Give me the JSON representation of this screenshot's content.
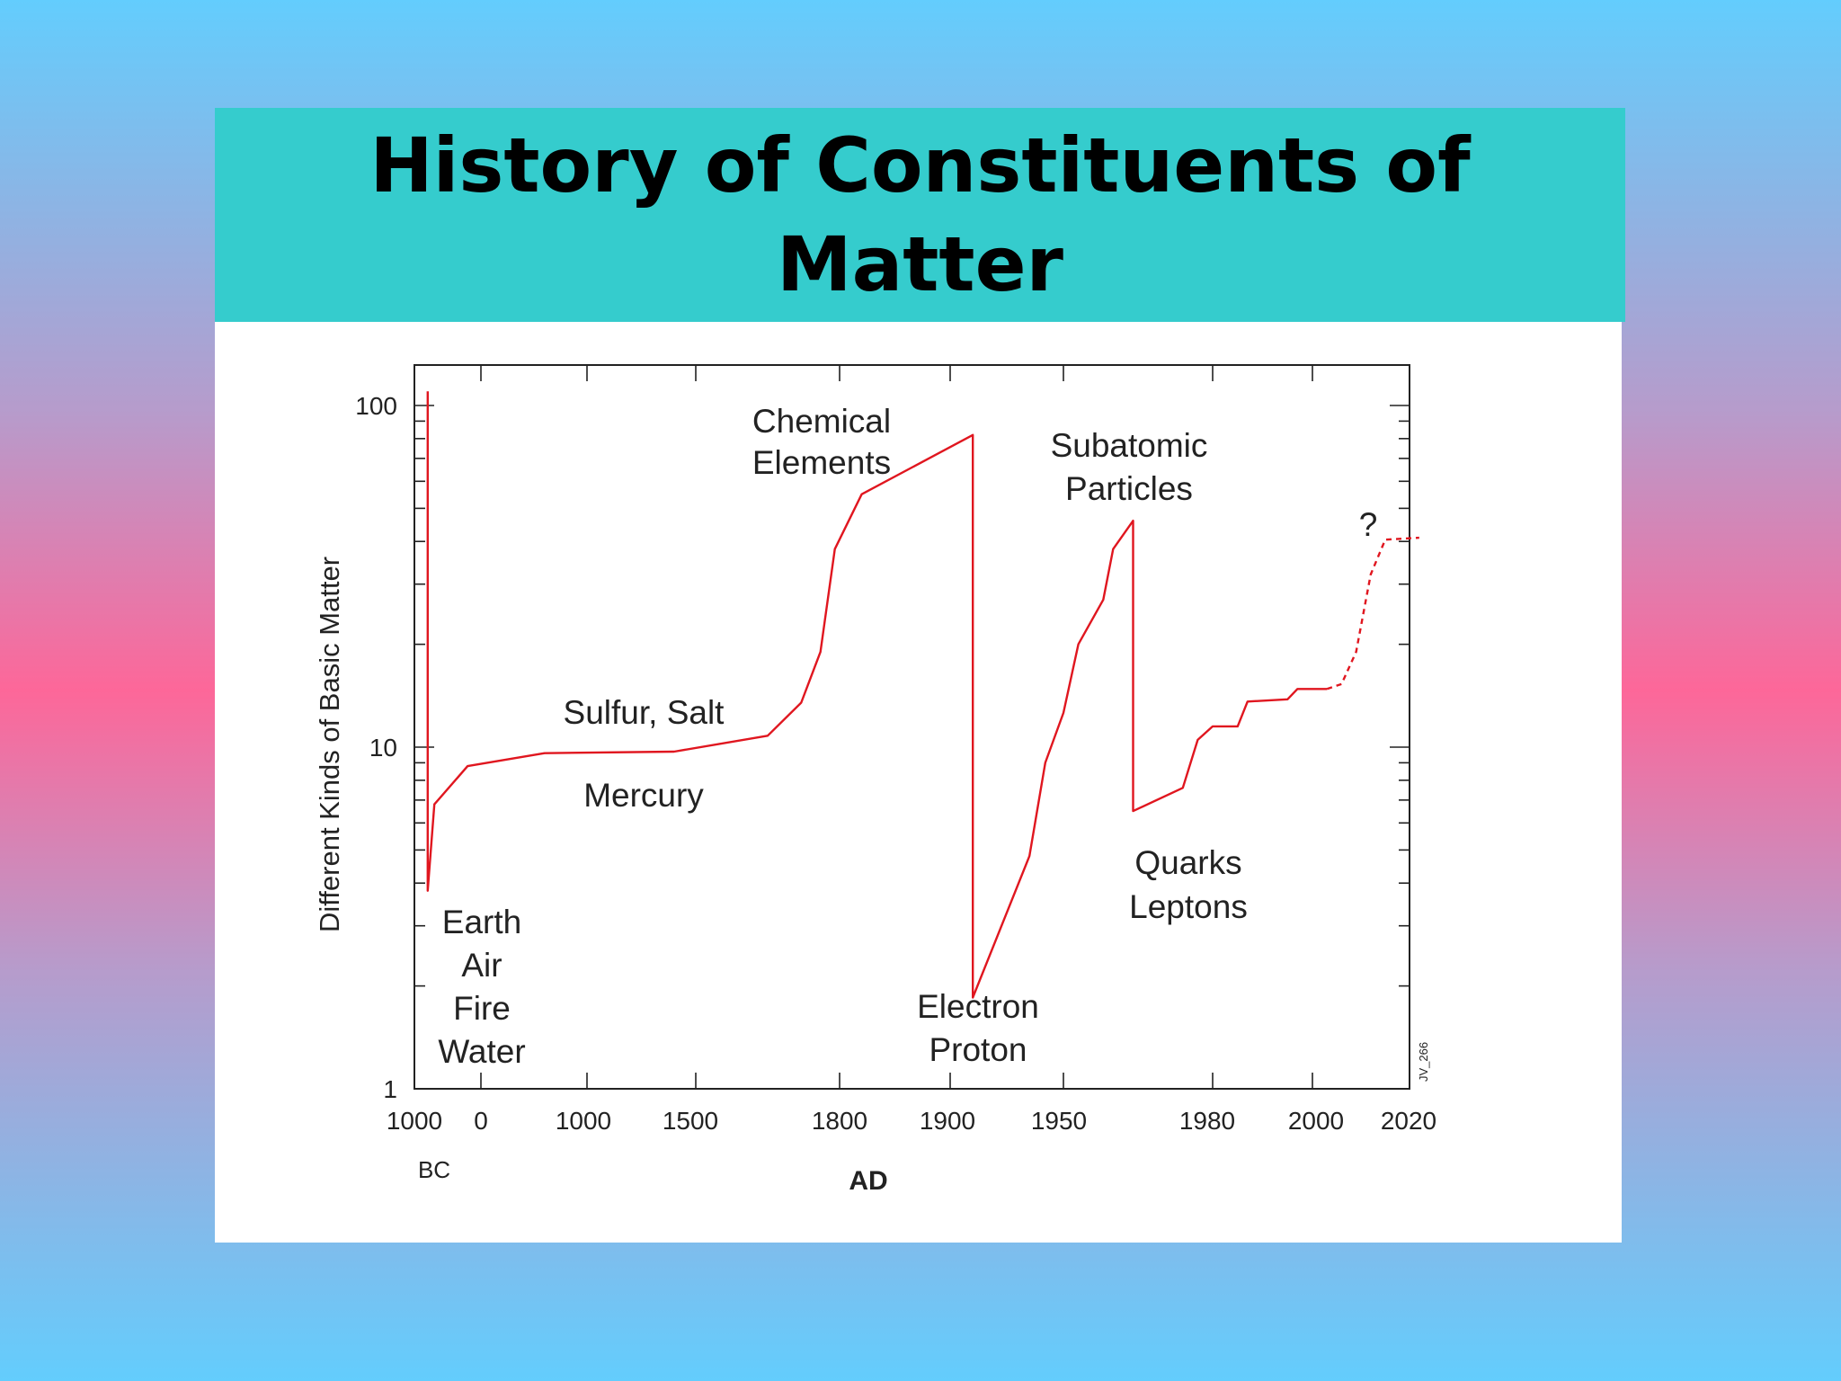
{
  "slide": {
    "title": "History of Constituents of Matter"
  },
  "chart_data": {
    "type": "line",
    "title": "",
    "ylabel": "Different Kinds of Basic Matter",
    "xlabel": "AD",
    "y_scale": "log",
    "ylim": [
      1,
      100
    ],
    "y_ticks": [
      "1",
      "10",
      "100"
    ],
    "x_scale": "piecewise (compressed timeline)",
    "x_ticks": [
      "1000",
      "0",
      "1000",
      "1500",
      "1800",
      "1900",
      "1950",
      "1980",
      "2000",
      "2020"
    ],
    "x_tick_note": "BC",
    "grid": false,
    "series": [
      {
        "style": "solid",
        "color": "#e0161f",
        "points": [
          {
            "x": -800,
            "y": 110
          },
          {
            "x": -800,
            "y": 3.8
          },
          {
            "x": -700,
            "y": 6.8
          },
          {
            "x": -200,
            "y": 8.8
          },
          {
            "x": 600,
            "y": 9.6
          },
          {
            "x": 1400,
            "y": 9.7
          },
          {
            "x": 1650,
            "y": 10.8
          },
          {
            "x": 1720,
            "y": 13.5
          },
          {
            "x": 1760,
            "y": 19
          },
          {
            "x": 1790,
            "y": 38
          },
          {
            "x": 1820,
            "y": 55
          },
          {
            "x": 1910,
            "y": 82
          },
          {
            "x": 1910,
            "y": 1.85
          },
          {
            "x": 1935,
            "y": 4.8
          },
          {
            "x": 1942,
            "y": 9
          },
          {
            "x": 1950,
            "y": 12.6
          },
          {
            "x": 1953,
            "y": 20
          },
          {
            "x": 1958,
            "y": 27
          },
          {
            "x": 1960,
            "y": 38
          },
          {
            "x": 1964,
            "y": 46
          },
          {
            "x": 1964,
            "y": 6.5
          },
          {
            "x": 1974,
            "y": 7.6
          },
          {
            "x": 1977,
            "y": 10.5
          },
          {
            "x": 1980,
            "y": 11.5
          },
          {
            "x": 1985,
            "y": 11.5
          },
          {
            "x": 1987,
            "y": 13.6
          },
          {
            "x": 1995,
            "y": 13.8
          },
          {
            "x": 1997,
            "y": 14.8
          },
          {
            "x": 2003,
            "y": 14.8
          }
        ]
      },
      {
        "style": "dashed",
        "color": "#e0161f",
        "points": [
          {
            "x": 2003,
            "y": 14.8
          },
          {
            "x": 2006,
            "y": 15.3
          },
          {
            "x": 2009,
            "y": 19
          },
          {
            "x": 2012,
            "y": 32
          },
          {
            "x": 2015,
            "y": 40.5
          },
          {
            "x": 2022,
            "y": 41
          }
        ]
      }
    ],
    "annotations": [
      {
        "lines": [
          "Earth",
          "Air",
          "Fire",
          "Water"
        ]
      },
      {
        "lines": [
          "Sulfur, Salt"
        ]
      },
      {
        "lines": [
          "Mercury"
        ]
      },
      {
        "lines": [
          "Chemical",
          "Elements"
        ]
      },
      {
        "lines": [
          "Electron",
          "Proton"
        ]
      },
      {
        "lines": [
          "Subatomic",
          "Particles"
        ]
      },
      {
        "lines": [
          "Quarks",
          "Leptons"
        ]
      },
      {
        "lines": [
          "?"
        ]
      }
    ],
    "corner_code": "JV_266"
  }
}
